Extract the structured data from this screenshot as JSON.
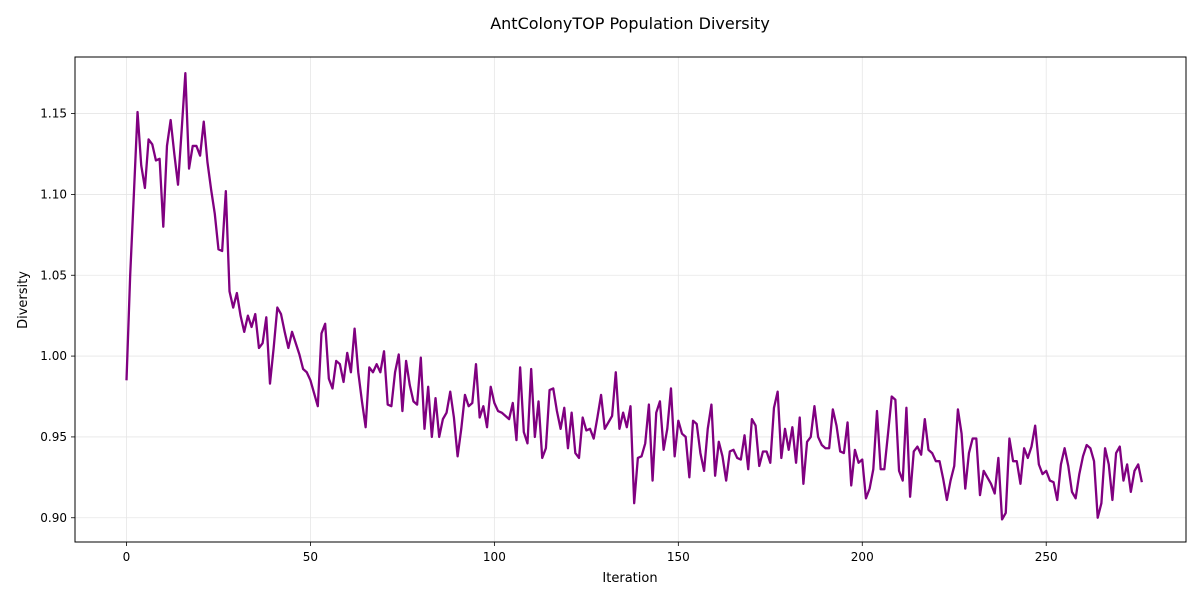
{
  "chart_data": {
    "type": "line",
    "title": "AntColonyTOP Population Diversity",
    "xlabel": "Iteration",
    "ylabel": "Diversity",
    "xlim": [
      -14,
      288
    ],
    "ylim": [
      0.885,
      1.185
    ],
    "xticks": [
      0,
      50,
      100,
      150,
      200,
      250
    ],
    "xtick_labels": [
      "0",
      "50",
      "100",
      "150",
      "200",
      "250"
    ],
    "yticks": [
      0.9,
      0.95,
      1.0,
      1.05,
      1.1,
      1.15
    ],
    "ytick_labels": [
      "0.90",
      "0.95",
      "1.00",
      "1.05",
      "1.10",
      "1.15"
    ],
    "grid": true,
    "series": [
      {
        "color": "#800080",
        "x_start": 0,
        "x_step": 1,
        "values": [
          0.985,
          1.05,
          1.1,
          1.151,
          1.118,
          1.104,
          1.134,
          1.131,
          1.121,
          1.122,
          1.08,
          1.13,
          1.146,
          1.125,
          1.106,
          1.14,
          1.175,
          1.116,
          1.13,
          1.13,
          1.124,
          1.145,
          1.12,
          1.103,
          1.088,
          1.066,
          1.065,
          1.102,
          1.04,
          1.03,
          1.039,
          1.025,
          1.015,
          1.025,
          1.018,
          1.026,
          1.005,
          1.008,
          1.024,
          0.983,
          1.005,
          1.03,
          1.026,
          1.015,
          1.005,
          1.015,
          1.008,
          1.001,
          0.992,
          0.99,
          0.985,
          0.977,
          0.969,
          1.014,
          1.02,
          0.986,
          0.98,
          0.997,
          0.995,
          0.984,
          1.002,
          0.99,
          1.017,
          0.99,
          0.972,
          0.956,
          0.993,
          0.99,
          0.995,
          0.99,
          1.003,
          0.97,
          0.969,
          0.99,
          1.001,
          0.966,
          0.997,
          0.982,
          0.972,
          0.97,
          0.999,
          0.955,
          0.981,
          0.95,
          0.974,
          0.95,
          0.961,
          0.965,
          0.978,
          0.962,
          0.938,
          0.955,
          0.976,
          0.969,
          0.971,
          0.995,
          0.962,
          0.969,
          0.956,
          0.981,
          0.971,
          0.966,
          0.965,
          0.963,
          0.961,
          0.971,
          0.948,
          0.993,
          0.953,
          0.946,
          0.992,
          0.95,
          0.972,
          0.937,
          0.943,
          0.979,
          0.98,
          0.966,
          0.955,
          0.968,
          0.943,
          0.965,
          0.94,
          0.937,
          0.962,
          0.954,
          0.955,
          0.949,
          0.962,
          0.976,
          0.955,
          0.959,
          0.963,
          0.99,
          0.955,
          0.965,
          0.956,
          0.969,
          0.909,
          0.937,
          0.938,
          0.946,
          0.97,
          0.923,
          0.965,
          0.972,
          0.942,
          0.955,
          0.98,
          0.938,
          0.96,
          0.952,
          0.95,
          0.925,
          0.96,
          0.958,
          0.94,
          0.929,
          0.955,
          0.97,
          0.926,
          0.947,
          0.938,
          0.923,
          0.941,
          0.942,
          0.937,
          0.936,
          0.951,
          0.93,
          0.961,
          0.957,
          0.932,
          0.941,
          0.941,
          0.934,
          0.968,
          0.978,
          0.937,
          0.955,
          0.942,
          0.956,
          0.934,
          0.962,
          0.921,
          0.947,
          0.95,
          0.969,
          0.95,
          0.945,
          0.943,
          0.943,
          0.967,
          0.957,
          0.941,
          0.94,
          0.959,
          0.92,
          0.942,
          0.934,
          0.936,
          0.912,
          0.918,
          0.93,
          0.966,
          0.93,
          0.93,
          0.952,
          0.975,
          0.973,
          0.929,
          0.923,
          0.968,
          0.913,
          0.941,
          0.944,
          0.939,
          0.961,
          0.942,
          0.94,
          0.935,
          0.935,
          0.924,
          0.911,
          0.923,
          0.932,
          0.967,
          0.952,
          0.918,
          0.94,
          0.949,
          0.949,
          0.914,
          0.929,
          0.925,
          0.921,
          0.915,
          0.937,
          0.899,
          0.903,
          0.949,
          0.935,
          0.935,
          0.921,
          0.943,
          0.937,
          0.944,
          0.957,
          0.933,
          0.927,
          0.929,
          0.923,
          0.922,
          0.911,
          0.933,
          0.943,
          0.932,
          0.916,
          0.912,
          0.927,
          0.938,
          0.945,
          0.943,
          0.935,
          0.9,
          0.909,
          0.943,
          0.933,
          0.911,
          0.94,
          0.944,
          0.923,
          0.933,
          0.916,
          0.929,
          0.933,
          0.922
        ]
      }
    ]
  }
}
